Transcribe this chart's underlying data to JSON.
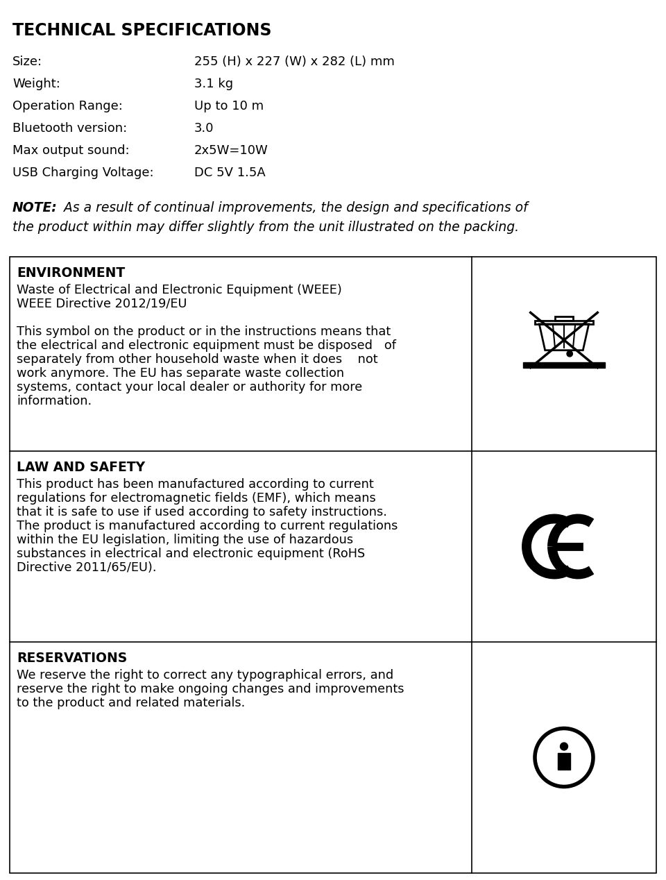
{
  "title": "TECHNICAL SPECIFICATIONS",
  "specs": [
    [
      "Size:",
      "255 (H) x 227 (W) x 282 (L) mm"
    ],
    [
      "Weight:",
      "3.1 kg"
    ],
    [
      "Operation Range:",
      "Up to 10 m"
    ],
    [
      "Bluetooth version:",
      "3.0"
    ],
    [
      "Max output sound:",
      "2x5W=10W"
    ],
    [
      "USB Charging Voltage:",
      "DC 5V 1.5A"
    ]
  ],
  "note_bold": "NOTE:",
  "note_rest_line1": " As a result of continual improvements, the design and specifications of",
  "note_line2": "the product within may differ slightly from the unit illustrated on the packing.",
  "sections": [
    {
      "header": "ENVIRONMENT",
      "lines": [
        "Waste of Electrical and Electronic Equipment (WEEE)",
        "WEEE Directive 2012/19/EU",
        "",
        "This symbol on the product or in the instructions means that",
        "the electrical and electronic equipment must be disposed   of",
        "separately from other household waste when it does    not",
        "work anymore. The EU has separate waste collection",
        "systems, contact your local dealer or authority for more",
        "information."
      ]
    },
    {
      "header": "LAW AND SAFETY",
      "lines": [
        "This product has been manufactured according to current",
        "regulations for electromagnetic fields (EMF), which means",
        "that it is safe to use if used according to safety instructions.",
        "The product is manufactured according to current regulations",
        "within the EU legislation, limiting the use of hazardous",
        "substances in electrical and electronic equipment (RoHS",
        "Directive 2011/65/EU)."
      ]
    },
    {
      "header": "RESERVATIONS",
      "lines": [
        "We reserve the right to correct any typographical errors, and",
        "reserve the right to make ongoing changes and improvements",
        "to the product and related materials."
      ]
    }
  ],
  "bg_color": "#ffffff",
  "text_color": "#000000"
}
